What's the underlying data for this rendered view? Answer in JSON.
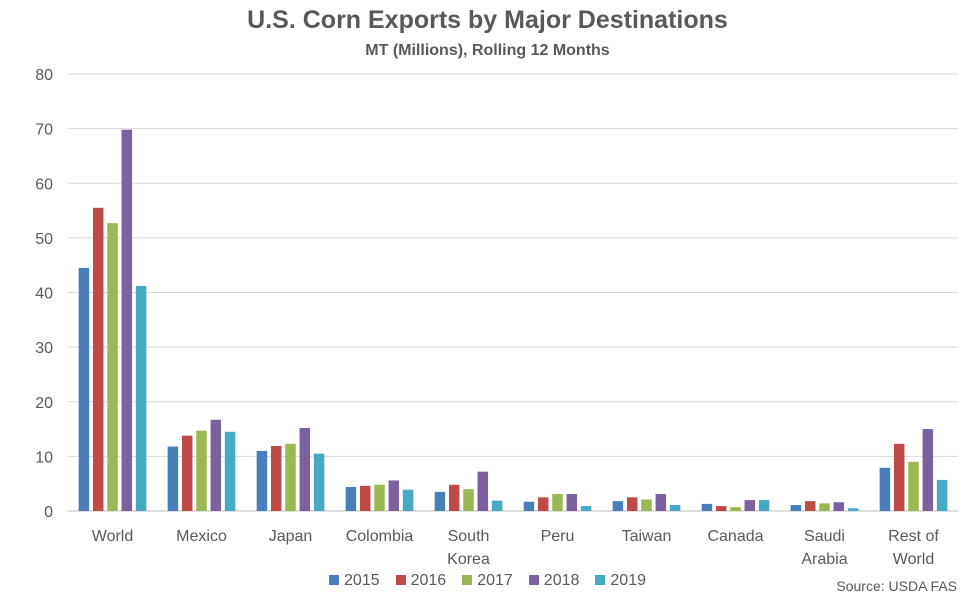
{
  "chart_data": {
    "type": "bar",
    "title": "U.S. Corn Exports by Major Destinations",
    "subtitle": "MT (Millions), Rolling 12 Months",
    "xlabel": "",
    "ylabel": "",
    "ylim": [
      0,
      80
    ],
    "yticks": [
      0,
      10,
      20,
      30,
      40,
      50,
      60,
      70,
      80
    ],
    "grid": true,
    "legend_position": "bottom",
    "categories": [
      [
        "World"
      ],
      [
        "Mexico"
      ],
      [
        "Japan"
      ],
      [
        "Colombia"
      ],
      [
        "South",
        "Korea"
      ],
      [
        "Peru"
      ],
      [
        "Taiwan"
      ],
      [
        "Canada"
      ],
      [
        "Saudi",
        "Arabia"
      ],
      [
        "Rest of",
        "World"
      ]
    ],
    "series": [
      {
        "name": "2015",
        "color": "#4a7ebb",
        "values": [
          44.5,
          11.8,
          11.0,
          4.4,
          3.5,
          1.7,
          1.8,
          1.3,
          1.1,
          7.9
        ]
      },
      {
        "name": "2016",
        "color": "#be4b48",
        "values": [
          55.5,
          13.8,
          11.9,
          4.6,
          4.8,
          2.5,
          2.5,
          0.9,
          1.8,
          12.3
        ]
      },
      {
        "name": "2017",
        "color": "#98b954",
        "values": [
          52.7,
          14.7,
          12.3,
          4.8,
          4.0,
          3.1,
          2.1,
          0.7,
          1.4,
          9.0
        ]
      },
      {
        "name": "2018",
        "color": "#7d60a0",
        "values": [
          69.8,
          16.7,
          15.2,
          5.6,
          7.2,
          3.1,
          3.1,
          2.0,
          1.6,
          15.0
        ]
      },
      {
        "name": "2019",
        "color": "#46aac5",
        "values": [
          41.2,
          14.5,
          10.5,
          3.9,
          1.9,
          0.9,
          1.1,
          2.0,
          0.5,
          5.7
        ]
      }
    ],
    "source": "Source: USDA FAS"
  }
}
